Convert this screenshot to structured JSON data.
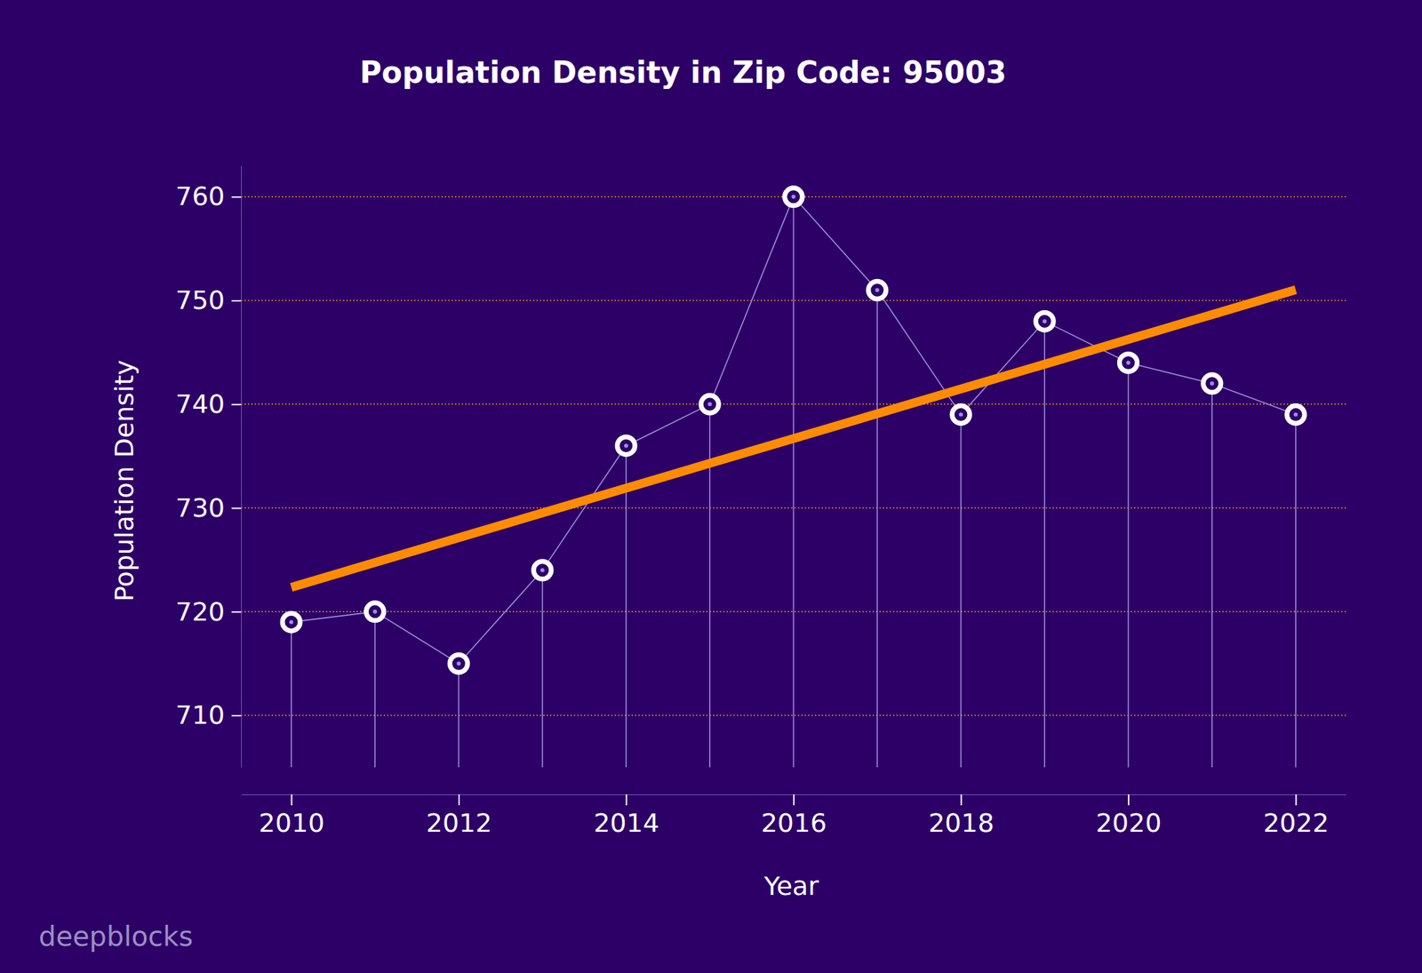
{
  "chart_data": {
    "type": "line",
    "title": "Population Density in Zip Code: 95003",
    "x_label": "Year",
    "y_label": "Population Density",
    "watermark": "deepblocks",
    "x": [
      2010,
      2011,
      2012,
      2013,
      2014,
      2015,
      2016,
      2017,
      2018,
      2019,
      2020,
      2021,
      2022
    ],
    "values": [
      719,
      720,
      715,
      724,
      736,
      740,
      760,
      751,
      739,
      748,
      744,
      742,
      739
    ],
    "color": "#ffffff",
    "marker": "circle",
    "trend": {
      "x": [
        2010,
        2022
      ],
      "values": [
        722.35,
        751.03
      ],
      "color": "#ff8c00"
    },
    "xlim": [
      2009.4,
      2022.6
    ],
    "xticks": [
      2010,
      2012,
      2014,
      2016,
      2018,
      2020,
      2022
    ],
    "ylim": [
      705,
      763
    ],
    "yticks": [
      710,
      720,
      730,
      740,
      750,
      760
    ],
    "grid": true
  }
}
